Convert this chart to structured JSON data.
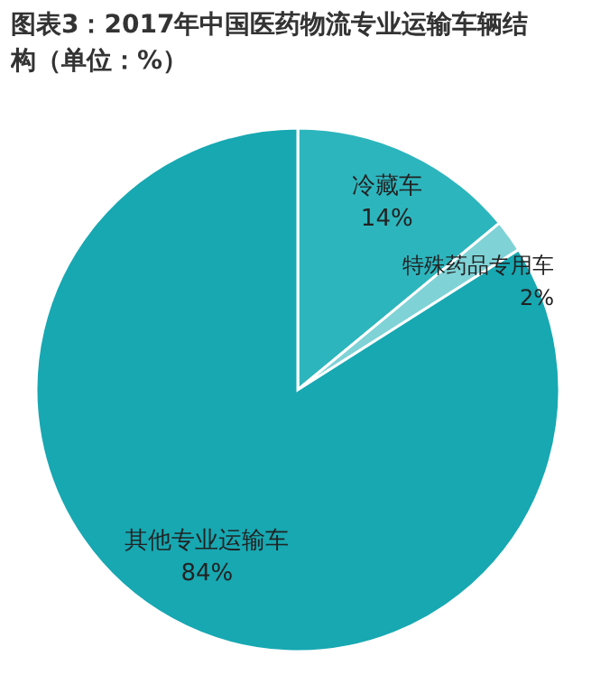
{
  "chart_data": {
    "type": "pie",
    "title": "图表3：2017年中国医药物流专业运输车辆结构（单位：%）",
    "categories": [
      "冷藏车",
      "特殊药品专用车",
      "其他专业运输车"
    ],
    "values": [
      14,
      2,
      84
    ],
    "colors": [
      "#2db5bd",
      "#7fd2d6",
      "#17a8b2"
    ],
    "value_labels": [
      "14%",
      "2%",
      "84%"
    ]
  }
}
